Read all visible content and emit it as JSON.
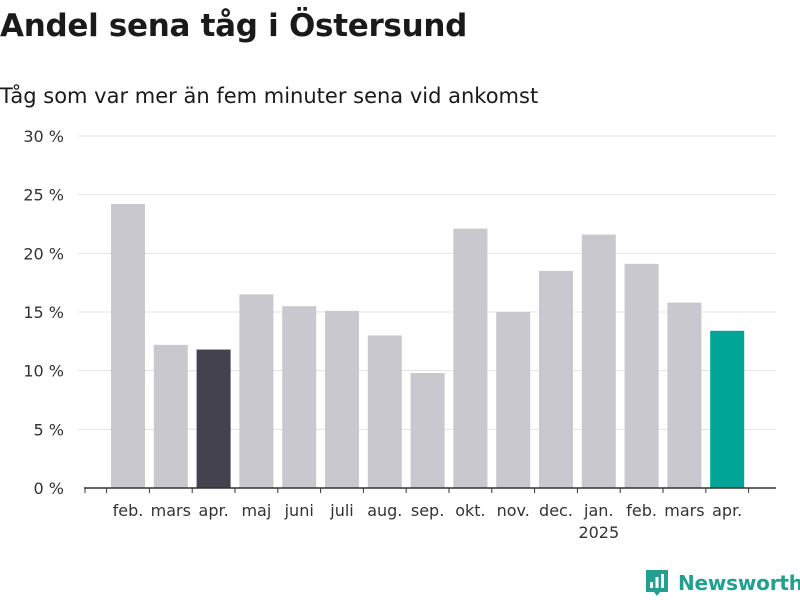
{
  "title": "Andel sena tåg i Östersund",
  "subtitle": "Tåg som var mer än fem minuter sena vid ankomst",
  "brand": "Newsworthy",
  "colors": {
    "default": "#c8c8ce",
    "highlight_start": "#44424e",
    "highlight_end": "#00a598",
    "brand": "#239f8f"
  },
  "chart_data": {
    "type": "bar",
    "categories": [
      "feb.",
      "mars",
      "apr.",
      "maj",
      "juni",
      "juli",
      "aug.",
      "sep.",
      "okt.",
      "nov.",
      "dec.",
      "jan.",
      "feb.",
      "mars",
      "apr."
    ],
    "year_labels": [
      {
        "index": 11,
        "label": "2025"
      }
    ],
    "values": [
      24.2,
      12.2,
      11.8,
      16.5,
      15.5,
      15.1,
      13.0,
      9.8,
      22.1,
      15.0,
      18.5,
      21.6,
      19.1,
      15.8,
      13.4
    ],
    "highlight": {
      "2": "highlight_start",
      "14": "highlight_end"
    },
    "ylim": [
      0,
      30
    ],
    "yticks": [
      0,
      5,
      10,
      15,
      20,
      25,
      30
    ],
    "ytick_labels": [
      "0 %",
      "5 %",
      "10 %",
      "15 %",
      "20 %",
      "25 %",
      "30 %"
    ],
    "grid": true,
    "xlabel": "",
    "ylabel": ""
  }
}
